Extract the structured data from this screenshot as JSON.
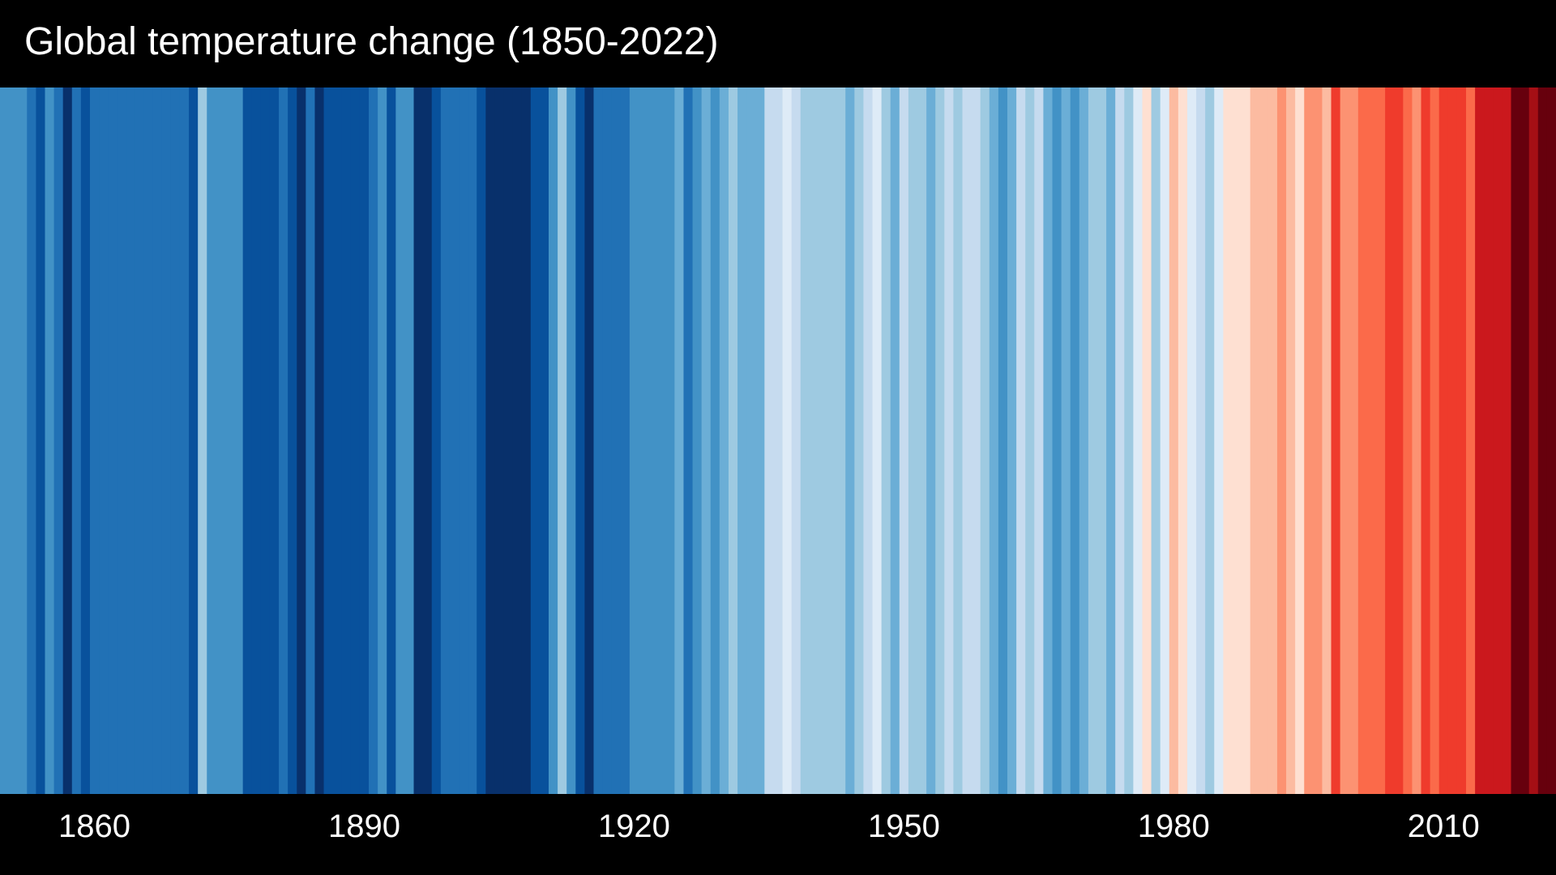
{
  "chart_data": {
    "type": "heatmap",
    "title": "Global temperature change (1850-2022)",
    "x_range": [
      1850,
      2022
    ],
    "tick_labels": [
      "1860",
      "1890",
      "1920",
      "1950",
      "1980",
      "2010"
    ],
    "grid": false,
    "legend": "none",
    "palette": [
      "#08306b",
      "#08519c",
      "#2171b5",
      "#4292c6",
      "#6baed6",
      "#9ecae1",
      "#c6dbef",
      "#deebf7",
      "#fee0d2",
      "#fcbba1",
      "#fc9272",
      "#fb6a4a",
      "#ef3b2c",
      "#cb181d",
      "#a50f15",
      "#67000d"
    ],
    "years": [
      1850,
      1851,
      1852,
      1853,
      1854,
      1855,
      1856,
      1857,
      1858,
      1859,
      1860,
      1861,
      1862,
      1863,
      1864,
      1865,
      1866,
      1867,
      1868,
      1869,
      1870,
      1871,
      1872,
      1873,
      1874,
      1875,
      1876,
      1877,
      1878,
      1879,
      1880,
      1881,
      1882,
      1883,
      1884,
      1885,
      1886,
      1887,
      1888,
      1889,
      1890,
      1891,
      1892,
      1893,
      1894,
      1895,
      1896,
      1897,
      1898,
      1899,
      1900,
      1901,
      1902,
      1903,
      1904,
      1905,
      1906,
      1907,
      1908,
      1909,
      1910,
      1911,
      1912,
      1913,
      1914,
      1915,
      1916,
      1917,
      1918,
      1919,
      1920,
      1921,
      1922,
      1923,
      1924,
      1925,
      1926,
      1927,
      1928,
      1929,
      1930,
      1931,
      1932,
      1933,
      1934,
      1935,
      1936,
      1937,
      1938,
      1939,
      1940,
      1941,
      1942,
      1943,
      1944,
      1945,
      1946,
      1947,
      1948,
      1949,
      1950,
      1951,
      1952,
      1953,
      1954,
      1955,
      1956,
      1957,
      1958,
      1959,
      1960,
      1961,
      1962,
      1963,
      1964,
      1965,
      1966,
      1967,
      1968,
      1969,
      1970,
      1971,
      1972,
      1973,
      1974,
      1975,
      1976,
      1977,
      1978,
      1979,
      1980,
      1981,
      1982,
      1983,
      1984,
      1985,
      1986,
      1987,
      1988,
      1989,
      1990,
      1991,
      1992,
      1993,
      1994,
      1995,
      1996,
      1997,
      1998,
      1999,
      2000,
      2001,
      2002,
      2003,
      2004,
      2005,
      2006,
      2007,
      2008,
      2009,
      2010,
      2011,
      2012,
      2013,
      2014,
      2015,
      2016,
      2017,
      2018,
      2019,
      2020,
      2021,
      2022
    ],
    "levels": [
      3,
      3,
      3,
      2,
      1,
      3,
      2,
      0,
      2,
      1,
      2,
      2,
      2,
      2,
      2,
      2,
      2,
      2,
      2,
      2,
      2,
      1,
      5,
      3,
      3,
      3,
      3,
      1,
      1,
      1,
      1,
      2,
      1,
      0,
      2,
      0,
      1,
      1,
      1,
      1,
      1,
      2,
      3,
      1,
      3,
      3,
      0,
      0,
      1,
      2,
      2,
      2,
      2,
      1,
      0,
      0,
      0,
      0,
      0,
      1,
      1,
      3,
      5,
      3,
      1,
      0,
      2,
      2,
      2,
      2,
      3,
      3,
      3,
      3,
      3,
      4,
      2,
      3,
      4,
      3,
      4,
      5,
      4,
      4,
      4,
      6,
      6,
      7,
      6,
      5,
      5,
      5,
      5,
      5,
      4,
      5,
      6,
      7,
      5,
      4,
      6,
      5,
      5,
      4,
      5,
      6,
      5,
      6,
      6,
      5,
      4,
      3,
      4,
      6,
      5,
      6,
      4,
      3,
      4,
      3,
      4,
      5,
      5,
      4,
      6,
      5,
      7,
      8,
      5,
      7,
      9,
      8,
      7,
      6,
      5,
      7,
      8,
      8,
      8,
      9,
      9,
      9,
      10,
      9,
      8,
      10,
      10,
      9,
      12,
      10,
      10,
      11,
      11,
      11,
      12,
      12,
      11,
      10,
      12,
      11,
      12,
      12,
      12,
      11,
      13,
      13,
      13,
      13,
      15,
      15,
      14,
      15,
      15
    ]
  }
}
